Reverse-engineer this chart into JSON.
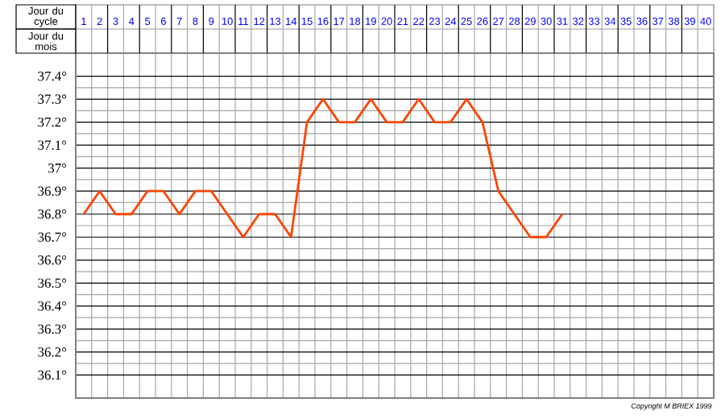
{
  "chart_data": {
    "type": "line",
    "xlabel": "Jour du cycle",
    "annotations": [
      "Jour du mois",
      "Copyright M BRIEX 1999"
    ],
    "categories": [
      "1",
      "2",
      "3",
      "4",
      "5",
      "6",
      "7",
      "8",
      "9",
      "10",
      "11",
      "12",
      "13",
      "14",
      "15",
      "16",
      "17",
      "18",
      "19",
      "20",
      "21",
      "22",
      "23",
      "24",
      "25",
      "26",
      "27",
      "28",
      "29",
      "30",
      "31",
      "32",
      "33",
      "34",
      "35",
      "36",
      "37",
      "38",
      "39",
      "40"
    ],
    "series": [
      {
        "color": "#ff4400",
        "values": [
          36.8,
          36.9,
          36.8,
          36.8,
          36.9,
          36.9,
          36.8,
          36.9,
          36.9,
          36.8,
          36.7,
          36.8,
          36.8,
          36.7,
          37.2,
          37.3,
          37.2,
          37.2,
          37.3,
          37.2,
          37.2,
          37.3,
          37.2,
          37.2,
          37.3,
          37.2,
          36.9,
          36.8,
          36.7,
          36.7,
          36.8,
          null,
          null,
          null,
          null,
          null,
          null,
          null,
          null,
          null
        ]
      }
    ],
    "ylim": [
      36.0,
      37.5
    ],
    "yticks": [
      {
        "value": 36.1,
        "label": "36.1°"
      },
      {
        "value": 36.2,
        "label": "36.2°"
      },
      {
        "value": 36.3,
        "label": "36.3°"
      },
      {
        "value": 36.4,
        "label": "36.4°"
      },
      {
        "value": 36.5,
        "label": "36.5°"
      },
      {
        "value": 36.6,
        "label": "36.6°"
      },
      {
        "value": 36.7,
        "label": "36.7°"
      },
      {
        "value": 36.8,
        "label": "36.8°"
      },
      {
        "value": 36.9,
        "label": "36.9°"
      },
      {
        "value": 37.0,
        "label": "37°"
      },
      {
        "value": 37.1,
        "label": "37.1°"
      },
      {
        "value": 37.2,
        "label": "37.2°"
      },
      {
        "value": 37.3,
        "label": "37.3°"
      },
      {
        "value": 37.4,
        "label": "37.4°"
      }
    ],
    "grid": true
  }
}
